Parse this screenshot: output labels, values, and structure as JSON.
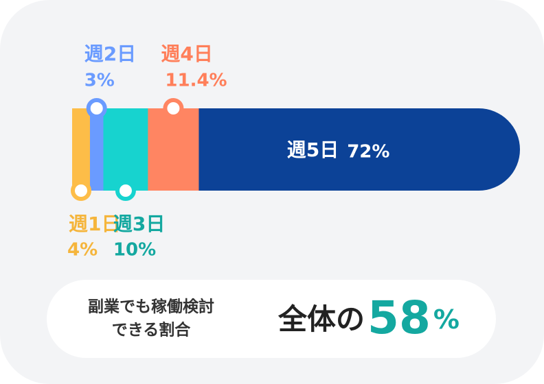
{
  "chart_data": {
    "type": "stacked_bar",
    "categories": [
      "週1日",
      "週2日",
      "週3日",
      "週4日",
      "週5日"
    ],
    "values": [
      4,
      3,
      10,
      11.4,
      72
    ],
    "value_labels": [
      "4%",
      "3%",
      "10%",
      "11.4%",
      "72%"
    ],
    "colors": [
      "#fdbd48",
      "#6a9bff",
      "#17d3cf",
      "#ff8562",
      "#0c4297"
    ],
    "label_colors": [
      "#f5b53c",
      "#6a9bff",
      "#14a8a0",
      "#ff7f5a",
      "#ffffff"
    ]
  },
  "summary": {
    "label_lines": [
      "副業でも稼働検討",
      "できる割合"
    ],
    "prefix": "全体の",
    "value": 58,
    "unit": "%"
  }
}
